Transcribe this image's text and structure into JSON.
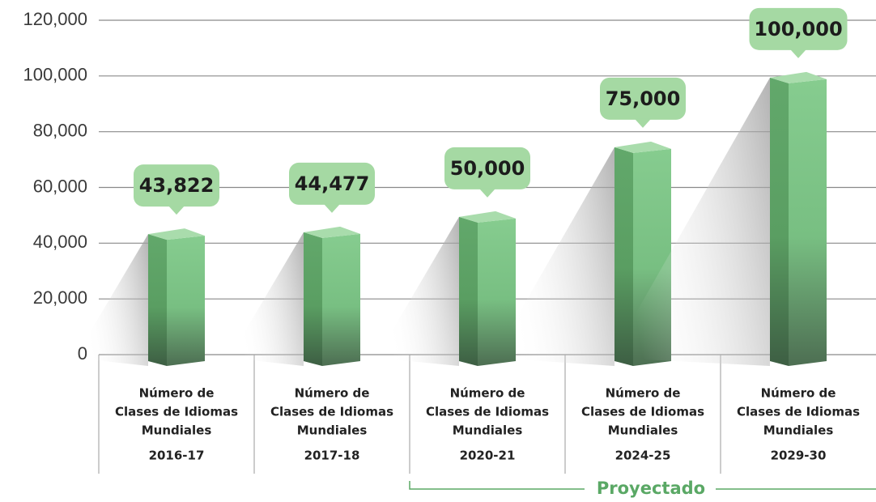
{
  "chart_data": {
    "type": "bar",
    "category_label_lines": [
      "Número de",
      "Clases de Idiomas",
      "Mundiales"
    ],
    "categories": [
      "2016-17",
      "2017-18",
      "2020-21",
      "2024-25",
      "2029-30"
    ],
    "values": [
      43822,
      44477,
      50000,
      75000,
      100000
    ],
    "value_labels": [
      "43,822",
      "44,477",
      "50,000",
      "75,000",
      "100,000"
    ],
    "color": "#6cb877",
    "ylim": [
      0,
      120000
    ],
    "yticks": [
      0,
      {
        "value": 20000,
        "label": "20,000"
      },
      {
        "value": 40000,
        "label": "40,000"
      },
      {
        "value": 60000,
        "label": "60,000"
      },
      {
        "value": 80000,
        "label": "80,000"
      },
      {
        "value": 100000,
        "label": "100,000"
      },
      {
        "value": 120000,
        "label": "120,000"
      }
    ],
    "grid": true,
    "annotation": "Proyectado"
  }
}
